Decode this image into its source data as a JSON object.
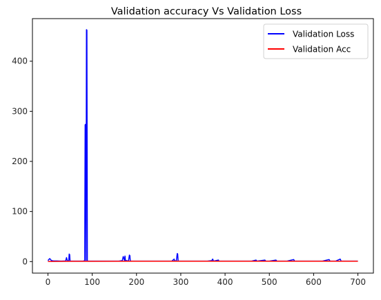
{
  "chart_data": {
    "type": "line",
    "title": "Validation accuracy Vs Validation Loss",
    "xlabel": "",
    "ylabel": "",
    "xlim": [
      -35,
      735
    ],
    "ylim": [
      -23,
      485
    ],
    "x_ticks": [
      0,
      100,
      200,
      300,
      400,
      500,
      600,
      700
    ],
    "y_ticks": [
      0,
      100,
      200,
      300,
      400
    ],
    "grid": false,
    "legend_position": "top-right",
    "series": [
      {
        "name": "Validation Loss",
        "color": "#0000ff",
        "points": [
          [
            0,
            2
          ],
          [
            2,
            4
          ],
          [
            4,
            6
          ],
          [
            6,
            4
          ],
          [
            8,
            2
          ],
          [
            12,
            1.5
          ],
          [
            20,
            1.2
          ],
          [
            30,
            1
          ],
          [
            40,
            1.2
          ],
          [
            42,
            8
          ],
          [
            44,
            1
          ],
          [
            47,
            2
          ],
          [
            48,
            15
          ],
          [
            49,
            14
          ],
          [
            50,
            1
          ],
          [
            60,
            1
          ],
          [
            70,
            1
          ],
          [
            80,
            1
          ],
          [
            83,
            2
          ],
          [
            84,
            273
          ],
          [
            85,
            274
          ],
          [
            86,
            2
          ],
          [
            87,
            463
          ],
          [
            88,
            462
          ],
          [
            89,
            2
          ],
          [
            90,
            1
          ],
          [
            100,
            1
          ],
          [
            120,
            1
          ],
          [
            140,
            1
          ],
          [
            160,
            1
          ],
          [
            168,
            2
          ],
          [
            170,
            10
          ],
          [
            171,
            8
          ],
          [
            173,
            2
          ],
          [
            174,
            11
          ],
          [
            175,
            2
          ],
          [
            178,
            2
          ],
          [
            180,
            1
          ],
          [
            182,
            2
          ],
          [
            184,
            13
          ],
          [
            185,
            12
          ],
          [
            186,
            1
          ],
          [
            200,
            1
          ],
          [
            220,
            1
          ],
          [
            240,
            1
          ],
          [
            260,
            1
          ],
          [
            280,
            1
          ],
          [
            285,
            5
          ],
          [
            286,
            1
          ],
          [
            290,
            2
          ],
          [
            292,
            16
          ],
          [
            293,
            15
          ],
          [
            294,
            1
          ],
          [
            300,
            1
          ],
          [
            320,
            1
          ],
          [
            340,
            1
          ],
          [
            360,
            1
          ],
          [
            370,
            2
          ],
          [
            372,
            5
          ],
          [
            374,
            1
          ],
          [
            385,
            3
          ],
          [
            386,
            1
          ],
          [
            400,
            1
          ],
          [
            420,
            1
          ],
          [
            440,
            1
          ],
          [
            460,
            1
          ],
          [
            470,
            3
          ],
          [
            472,
            1
          ],
          [
            490,
            3
          ],
          [
            492,
            1
          ],
          [
            500,
            1
          ],
          [
            515,
            3
          ],
          [
            517,
            1
          ],
          [
            540,
            1
          ],
          [
            555,
            4
          ],
          [
            557,
            1
          ],
          [
            580,
            1
          ],
          [
            600,
            1
          ],
          [
            620,
            1
          ],
          [
            635,
            4
          ],
          [
            637,
            1
          ],
          [
            650,
            1
          ],
          [
            660,
            5
          ],
          [
            662,
            1
          ],
          [
            680,
            1
          ],
          [
            700,
            1
          ]
        ]
      },
      {
        "name": "Validation Acc",
        "color": "#ff0000",
        "points": [
          [
            0,
            0.3
          ],
          [
            50,
            0.5
          ],
          [
            100,
            0.6
          ],
          [
            200,
            0.7
          ],
          [
            300,
            0.7
          ],
          [
            400,
            0.7
          ],
          [
            500,
            0.7
          ],
          [
            600,
            0.7
          ],
          [
            700,
            0.7
          ]
        ]
      }
    ]
  }
}
